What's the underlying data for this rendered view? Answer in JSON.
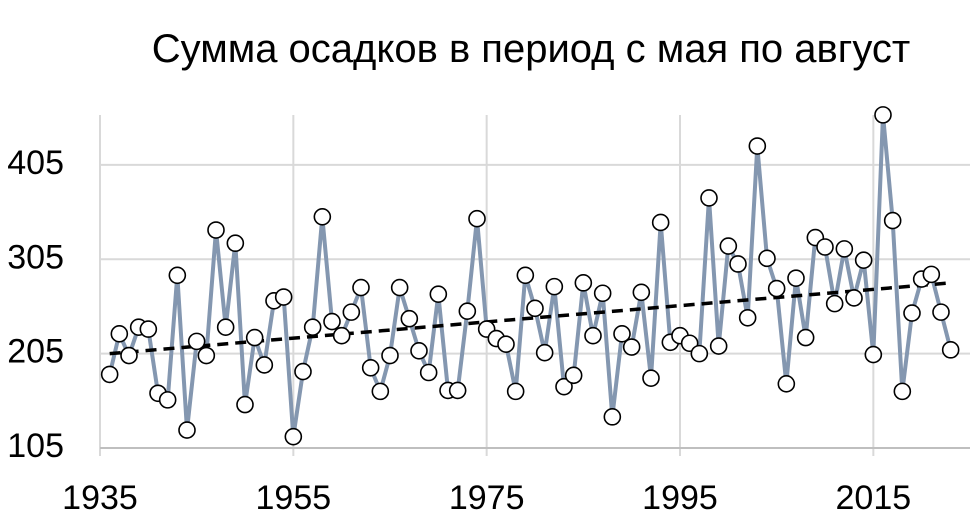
{
  "chart_data": {
    "type": "line",
    "title": "Сумма осадков в период с мая по август",
    "x": [
      1936,
      1937,
      1938,
      1939,
      1940,
      1941,
      1942,
      1943,
      1944,
      1945,
      1946,
      1947,
      1948,
      1949,
      1950,
      1951,
      1952,
      1953,
      1954,
      1955,
      1956,
      1957,
      1958,
      1959,
      1960,
      1961,
      1962,
      1963,
      1964,
      1965,
      1966,
      1967,
      1968,
      1969,
      1970,
      1971,
      1972,
      1973,
      1974,
      1975,
      1976,
      1977,
      1978,
      1979,
      1980,
      1981,
      1982,
      1983,
      1984,
      1985,
      1986,
      1987,
      1988,
      1989,
      1990,
      1991,
      1992,
      1993,
      1994,
      1995,
      1996,
      1997,
      1998,
      1999,
      2000,
      2001,
      2002,
      2003,
      2004,
      2005,
      2006,
      2007,
      2008,
      2009,
      2010,
      2011,
      2012,
      2013,
      2014,
      2015,
      2016,
      2017,
      2018,
      2019,
      2020,
      2021,
      2022,
      2023
    ],
    "series": [
      {
        "values": [
          183,
          226,
          203,
          233,
          231,
          163,
          156,
          288,
          124,
          218,
          203,
          336,
          233,
          322,
          151,
          222,
          193,
          261,
          265,
          117,
          186,
          233,
          350,
          239,
          224,
          249,
          275,
          190,
          165,
          203,
          275,
          242,
          208,
          185,
          268,
          166,
          166,
          250,
          348,
          231,
          221,
          215,
          165,
          288,
          253,
          206,
          276,
          170,
          182,
          280,
          224,
          269,
          138,
          226,
          212,
          270,
          179,
          344,
          217,
          224,
          216,
          205,
          370,
          213,
          319,
          300,
          243,
          425,
          306,
          274,
          173,
          285,
          222,
          328,
          318,
          258,
          316,
          264,
          304,
          204,
          458,
          346,
          165,
          248,
          284,
          289,
          249,
          209
        ],
        "color": "#8497b0",
        "marker_fill": "#ffffff",
        "marker_stroke": "#000000"
      }
    ],
    "trendline": {
      "x": [
        1936,
        2023
      ],
      "y": [
        205,
        280
      ],
      "color": "#000000",
      "dashed": true
    },
    "xticks": [
      "1935",
      "1955",
      "1975",
      "1995",
      "2015"
    ],
    "yticks": [
      "105",
      "205",
      "305",
      "405"
    ],
    "xlim": [
      1935,
      2025
    ],
    "ylim": [
      105,
      460
    ],
    "grid": true,
    "grid_color": "#d9d9d9",
    "axis_color": "#bfbfbf"
  }
}
